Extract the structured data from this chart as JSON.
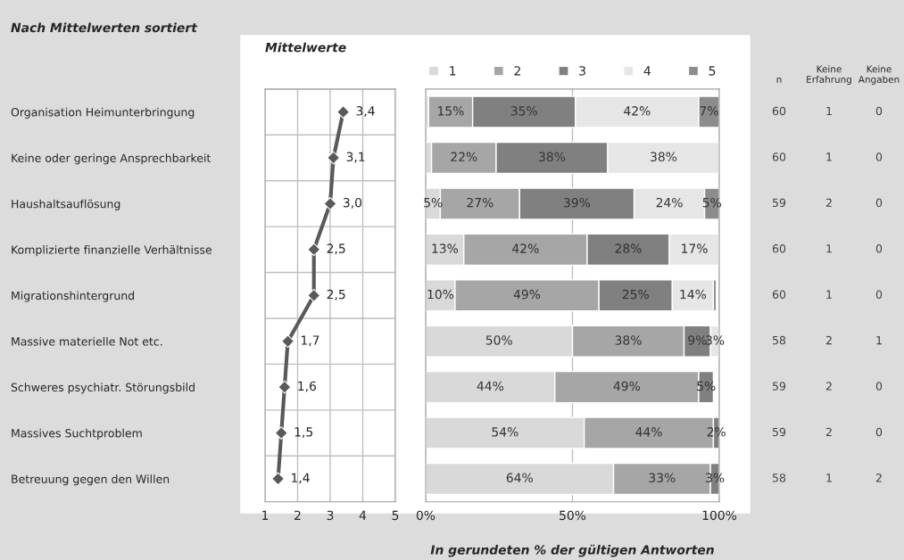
{
  "chart_data": [
    {
      "type": "line",
      "orientation": "horizontal",
      "title": "Mittelwerte",
      "annotations": [
        "Nach Mittelwerten sortiert"
      ],
      "categories": [
        "Organisation Heimunterbringung",
        "Keine oder geringe Ansprechbarkeit",
        "Haushaltsauflösung",
        "Komplizierte finanzielle Verhältnisse",
        "Migrationshintergrund",
        "Massive materielle Not etc.",
        "Schweres psychiatr. Störungsbild",
        "Massives Suchtproblem",
        "Betreuung gegen den Willen"
      ],
      "series": [
        {
          "color": "#595959",
          "values": [
            3.4,
            3.1,
            3.0,
            2.5,
            2.5,
            1.7,
            1.6,
            1.5,
            1.4
          ],
          "value_labels": [
            "3,4",
            "3,1",
            "3,0",
            "2,5",
            "2,5",
            "1,7",
            "1,6",
            "1,5",
            "1,4"
          ]
        }
      ],
      "xlim": [
        1,
        5
      ],
      "xticks": [
        1,
        2,
        3,
        4,
        5
      ],
      "grid": true,
      "marker": "diamond",
      "line_style": "solid"
    },
    {
      "type": "bar",
      "orientation": "horizontal",
      "stacked": true,
      "xlabel": "In gerundeten % der gültigen Antworten",
      "categories": [
        null,
        null,
        null,
        null,
        null,
        null,
        null,
        null,
        null
      ],
      "series": [
        {
          "name": "1",
          "color": "#d9d9d9",
          "values": [
            1,
            2,
            5,
            13,
            10,
            50,
            44,
            54,
            64
          ],
          "value_labels": [
            null,
            null,
            "5%",
            "13%",
            "10%",
            "50%",
            "44%",
            "54%",
            "64%"
          ]
        },
        {
          "name": "2",
          "color": "#a6a6a6",
          "values": [
            15,
            22,
            27,
            42,
            49,
            38,
            49,
            44,
            33
          ],
          "value_labels": [
            "15%",
            "22%",
            "27%",
            "42%",
            "49%",
            "38%",
            "49%",
            "44%",
            "33%"
          ]
        },
        {
          "name": "3",
          "color": "#808080",
          "values": [
            35,
            38,
            39,
            28,
            25,
            9,
            5,
            2,
            3
          ],
          "value_labels": [
            "35%",
            "38%",
            "39%",
            "28%",
            "25%",
            "9%",
            "5%",
            "2%",
            "3%"
          ]
        },
        {
          "name": "4",
          "color": "#e6e6e6",
          "values": [
            42,
            38,
            24,
            17,
            14,
            3,
            null,
            null,
            null
          ],
          "value_labels": [
            "42%",
            "38%",
            "24%",
            "17%",
            "14%",
            "3%",
            null,
            null,
            null
          ]
        },
        {
          "name": "5",
          "color": "#8c8c8c",
          "values": [
            7,
            null,
            5,
            null,
            1,
            null,
            null,
            null,
            null
          ],
          "value_labels": [
            "7%",
            null,
            "5%",
            null,
            null,
            null,
            null,
            null,
            null
          ]
        }
      ],
      "xlim": [
        0,
        100
      ],
      "xticks": [
        {
          "value": 0,
          "label": "0%"
        },
        {
          "value": 50,
          "label": "50%"
        },
        {
          "value": 100,
          "label": "100%"
        }
      ],
      "grid": "x",
      "legend": "top",
      "tick_labels": "x"
    },
    {
      "type": "heatmap",
      "data_labels": true,
      "tick_labels": "x",
      "categories": [
        "n",
        "Keine Erfahrung",
        "Keine Angaben"
      ],
      "y_categories": [
        null,
        null,
        null,
        null,
        null,
        null,
        null,
        null,
        null
      ],
      "cells": [
        [
          60,
          1,
          0
        ],
        [
          60,
          1,
          0
        ],
        [
          59,
          2,
          0
        ],
        [
          60,
          1,
          0
        ],
        [
          60,
          1,
          0
        ],
        [
          58,
          2,
          1
        ],
        [
          59,
          2,
          0
        ],
        [
          59,
          2,
          0
        ],
        [
          58,
          1,
          2
        ]
      ]
    }
  ]
}
